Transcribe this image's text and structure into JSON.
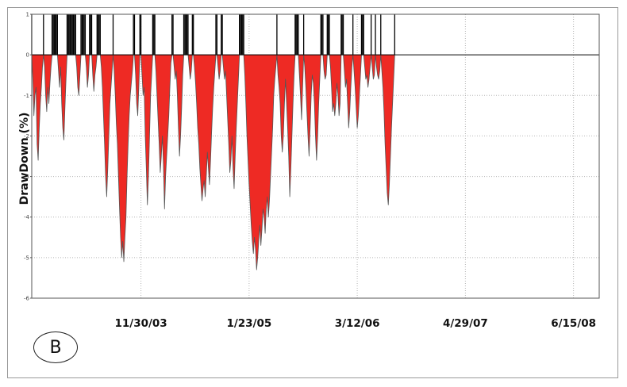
{
  "panel_label": "B",
  "colors": {
    "drawdown_fill": "#ee2a24",
    "drawdown_edge": "#555555",
    "recovery_bar": "#000000",
    "grid": "#b5b5b5",
    "baseline": "#000000"
  },
  "chart_data": {
    "type": "area",
    "title": "",
    "xlabel": "",
    "ylabel": "DrawDown (%)",
    "ylim": [
      -6,
      1
    ],
    "y_ticks": [
      "1",
      "0",
      "-1",
      "-2",
      "-3",
      "-4",
      "-5",
      "-6"
    ],
    "x_ticks": [
      "11/30/03",
      "1/23/05",
      "3/12/06",
      "4/29/07",
      "6/15/08"
    ],
    "x_ticks_index": [
      102,
      203,
      304,
      405,
      506
    ],
    "x_range_index": [
      0,
      530
    ],
    "grid": true,
    "series": [
      {
        "values": [
          0,
          -0.6,
          -1.5,
          -1,
          -0.8,
          -2.2,
          -2.6,
          -1.8,
          -1.2,
          -0.8,
          -0.3,
          0,
          -0.3,
          -1,
          -1.4,
          -0.8,
          -1.2,
          -0.7,
          -0.3,
          0,
          0,
          0,
          0,
          0,
          0,
          -0.4,
          -0.8,
          -0.3,
          -1.2,
          -1.8,
          -2.1,
          -1.3,
          -0.6,
          0,
          0,
          0,
          0,
          0,
          0,
          0,
          0,
          0,
          -0.3,
          -0.8,
          -1,
          -0.5,
          0,
          0,
          0,
          0,
          0,
          -0.3,
          -0.8,
          -0.5,
          0,
          0,
          0,
          -0.5,
          -0.9,
          -0.5,
          -0.3,
          0,
          0,
          0,
          0,
          -0.3,
          -0.8,
          -1.5,
          -2.2,
          -3,
          -3.5,
          -2.8,
          -2,
          -1.2,
          -0.8,
          -0.4,
          0,
          -0.4,
          -1,
          -1.7,
          -2.2,
          -3,
          -3.8,
          -4.5,
          -5,
          -4.6,
          -5.1,
          -4.5,
          -4,
          -3,
          -2.2,
          -1.5,
          -1,
          -0.7,
          -0.4,
          0,
          0,
          -0.5,
          -1.2,
          -1.5,
          -0.8,
          0,
          0,
          -0.5,
          -1,
          -0.8,
          -2,
          -2.8,
          -3.7,
          -3,
          -2,
          -1,
          -0.5,
          0,
          0,
          0,
          -0.4,
          -1,
          -1.6,
          -2.2,
          -2.9,
          -2.5,
          -2,
          -2.7,
          -3.8,
          -3,
          -2.5,
          -2,
          -1.5,
          -0.8,
          -0.2,
          0,
          0,
          -0.3,
          -0.6,
          -0.4,
          -1,
          -1.8,
          -2.5,
          -2,
          -1.3,
          -0.5,
          0,
          0,
          0,
          0,
          0,
          -0.3,
          -0.6,
          -0.4,
          0,
          0,
          -0.3,
          -0.7,
          -1.2,
          -1.8,
          -2.2,
          -2.8,
          -3.2,
          -3.6,
          -3.3,
          -3.1,
          -3.5,
          -3,
          -2.4,
          -2.8,
          -3.2,
          -2.6,
          -1.9,
          -1.3,
          -0.8,
          -0.4,
          0,
          0,
          -0.3,
          -0.6,
          -0.4,
          0,
          0,
          -0.3,
          -0.6,
          -0.4,
          -1,
          -1.6,
          -2.2,
          -2.9,
          -2.6,
          -2,
          -2.8,
          -3.3,
          -2.5,
          -1.8,
          -1.2,
          -0.6,
          0,
          0,
          0,
          0,
          0,
          -0.5,
          -1.2,
          -2,
          -2.6,
          -3.2,
          -3.7,
          -4.2,
          -4.6,
          -4.9,
          -4.5,
          -4.8,
          -5.3,
          -5,
          -4.6,
          -4.2,
          -4.7,
          -4.3,
          -3.8,
          -4,
          -4.4,
          -3.8,
          -3.5,
          -4,
          -3.6,
          -3,
          -2.4,
          -1.8,
          -1,
          -0.6,
          -0.3,
          0,
          -0.5,
          -0.8,
          -1.2,
          -2,
          -2.4,
          -2,
          -1.2,
          -0.6,
          -1.2,
          -1.8,
          -2.5,
          -3.5,
          -2.8,
          -2,
          -1.2,
          -0.5,
          0,
          0,
          0,
          0,
          -0.5,
          -1,
          -1.6,
          -0.8,
          0,
          -0.3,
          -0.8,
          -1.4,
          -2,
          -2.5,
          -1.8,
          -1,
          -0.5,
          -0.7,
          -1.2,
          -2,
          -2.6,
          -2,
          -1.2,
          -0.6,
          0,
          0,
          0,
          -0.4,
          -0.6,
          -0.5,
          0,
          0,
          0,
          -0.3,
          -0.8,
          -1.4,
          -1.2,
          -1.5,
          -1.2,
          -0.7,
          -1,
          -1.5,
          -1.2,
          0,
          0,
          0,
          -0.4,
          -0.8,
          -0.6,
          -1.2,
          -1.8,
          -1.4,
          -0.8,
          -0.3,
          0,
          -0.4,
          -0.8,
          -1.3,
          -1.8,
          -1.5,
          -1,
          -0.5,
          0,
          0,
          0,
          -0.3,
          -0.6,
          -0.5,
          -0.8,
          -0.6,
          -0.3,
          0,
          -0.3,
          -0.6,
          -0.5,
          0,
          -0.3,
          -0.5,
          -0.6,
          -0.4,
          0,
          -0.4,
          -0.8,
          -1.4,
          -2.2,
          -2.8,
          -3.4,
          -3.7,
          -3.2,
          -2.5,
          -1.8,
          -1.2,
          -0.6,
          0
        ]
      }
    ]
  }
}
